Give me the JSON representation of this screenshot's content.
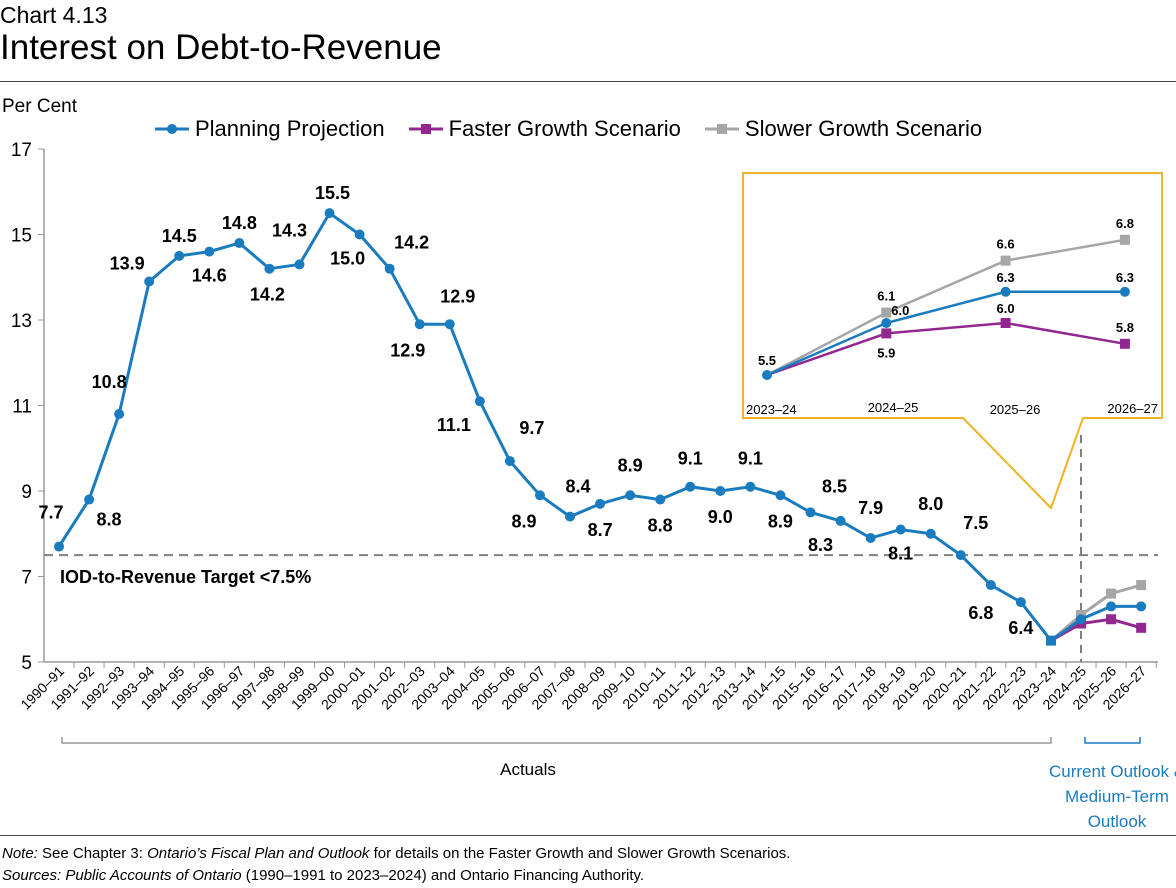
{
  "header": {
    "chart_number": "Chart 4.13",
    "title": "Interest on Debt-to-Revenue"
  },
  "chart_data": {
    "type": "line",
    "title": "Interest on Debt-to-Revenue",
    "ylabel": "Per Cent",
    "ylim": [
      5,
      17
    ],
    "yticks": [
      5,
      7,
      9,
      11,
      13,
      15,
      17
    ],
    "grid": false,
    "legend_placement": "top",
    "categories": [
      "1990–91",
      "1991–92",
      "1992–93",
      "1993–94",
      "1994–95",
      "1995–96",
      "1996–97",
      "1997–98",
      "1998–99",
      "1999–00",
      "2000–01",
      "2001–02",
      "2002–03",
      "2003–04",
      "2004–05",
      "2005–06",
      "2006–07",
      "2007–08",
      "2008–09",
      "2009–10",
      "2010–11",
      "2011–12",
      "2012–13",
      "2013–14",
      "2014–15",
      "2015–16",
      "2016–17",
      "2017–18",
      "2018–19",
      "2019–20",
      "2020–21",
      "2021–22",
      "2022–23",
      "2023–24",
      "2024–25",
      "2025–26",
      "2026–27"
    ],
    "series": [
      {
        "name": "Planning Projection",
        "color": "#1a7bbf",
        "marker": "circle",
        "values": [
          7.7,
          8.8,
          10.8,
          13.9,
          14.5,
          14.6,
          14.8,
          14.2,
          14.3,
          15.5,
          15.0,
          14.2,
          12.9,
          12.9,
          11.1,
          9.7,
          8.9,
          8.4,
          8.7,
          8.9,
          8.8,
          9.1,
          9.0,
          9.1,
          8.9,
          8.5,
          8.3,
          7.9,
          8.1,
          8.0,
          7.5,
          6.8,
          6.4,
          5.5,
          6.0,
          6.3,
          6.3
        ]
      },
      {
        "name": "Faster Growth Scenario",
        "color": "#92278f",
        "marker": "square",
        "values": [
          null,
          null,
          null,
          null,
          null,
          null,
          null,
          null,
          null,
          null,
          null,
          null,
          null,
          null,
          null,
          null,
          null,
          null,
          null,
          null,
          null,
          null,
          null,
          null,
          null,
          null,
          null,
          null,
          null,
          null,
          null,
          null,
          null,
          5.5,
          5.9,
          6.0,
          5.8
        ]
      },
      {
        "name": "Slower Growth Scenario",
        "color": "#a6a6a6",
        "marker": "square",
        "values": [
          null,
          null,
          null,
          null,
          null,
          null,
          null,
          null,
          null,
          null,
          null,
          null,
          null,
          null,
          null,
          null,
          null,
          null,
          null,
          null,
          null,
          null,
          null,
          null,
          null,
          null,
          null,
          null,
          null,
          null,
          null,
          null,
          null,
          5.5,
          6.1,
          6.6,
          6.8
        ]
      }
    ],
    "target_line": {
      "value": 7.5,
      "label": "IOD-to-Revenue Target <7.5%"
    },
    "inset": {
      "categories": [
        "2023–24",
        "2024–25",
        "2025–26",
        "2026–27"
      ],
      "border_color": "#f0b323"
    },
    "groups": [
      {
        "label": "Actuals"
      },
      {
        "label": "Current Outlook & Medium-Term Outlook",
        "color": "#1a7bbf"
      }
    ]
  },
  "notes": {
    "note_label": "Note:",
    "note_pre": " See Chapter 3: ",
    "note_italic": "Ontario’s Fiscal Plan and Outlook",
    "note_post": " for details on the Faster Growth and Slower Growth Scenarios.",
    "sources_label": "Sources: Public Accounts of Ontario",
    "sources_post": " (1990–1991 to 2023–2024) and Ontario Financing Authority."
  }
}
